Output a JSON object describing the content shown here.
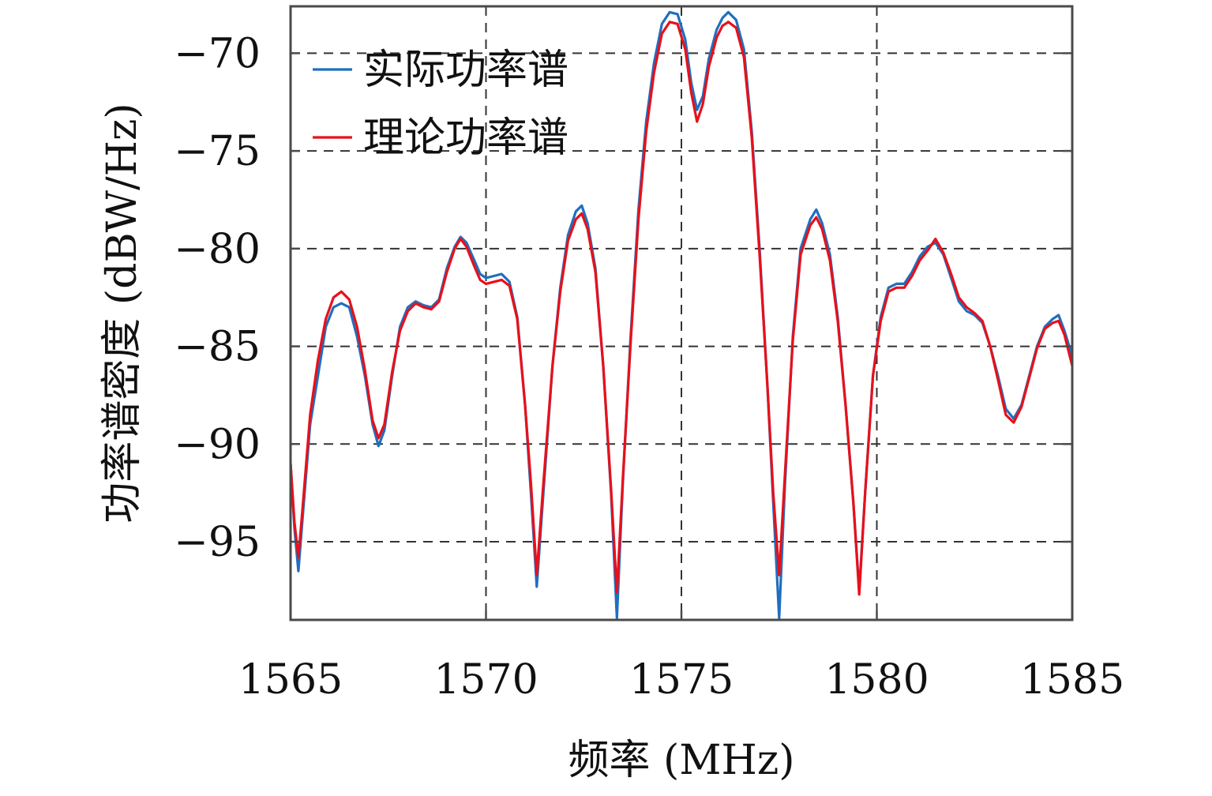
{
  "chart_data": {
    "type": "line",
    "title": "",
    "xlabel": "频率 (MHz)",
    "ylabel": "功率谱密度 (dBW/Hz)",
    "xlim": [
      1565,
      1585
    ],
    "ylim": [
      -99,
      -67.6
    ],
    "xticks": [
      1565,
      1570,
      1575,
      1580,
      1585
    ],
    "yticks": [
      -70,
      -75,
      -80,
      -85,
      -90,
      -95
    ],
    "xtick_labels": [
      "1565",
      "1570",
      "1575",
      "1580",
      "1585"
    ],
    "ytick_labels": [
      "−70",
      "−75",
      "−80",
      "−85",
      "−90",
      "−95"
    ],
    "grid": true,
    "legend_position": "top-left",
    "series": [
      {
        "name": "实际功率谱",
        "color": "#1f6fbf",
        "points": [
          [
            1565.0,
            -91.0
          ],
          [
            1565.1,
            -94.3
          ],
          [
            1565.2,
            -96.5
          ],
          [
            1565.3,
            -94.0
          ],
          [
            1565.5,
            -89.0
          ],
          [
            1565.7,
            -86.5
          ],
          [
            1565.9,
            -84.0
          ],
          [
            1566.1,
            -83.0
          ],
          [
            1566.3,
            -82.8
          ],
          [
            1566.5,
            -83.0
          ],
          [
            1566.7,
            -84.5
          ],
          [
            1566.9,
            -86.5
          ],
          [
            1567.1,
            -89.0
          ],
          [
            1567.25,
            -90.1
          ],
          [
            1567.4,
            -89.3
          ],
          [
            1567.6,
            -86.5
          ],
          [
            1567.8,
            -84.0
          ],
          [
            1568.0,
            -83.0
          ],
          [
            1568.2,
            -82.7
          ],
          [
            1568.4,
            -82.9
          ],
          [
            1568.6,
            -83.0
          ],
          [
            1568.8,
            -82.6
          ],
          [
            1569.0,
            -81.0
          ],
          [
            1569.2,
            -79.9
          ],
          [
            1569.35,
            -79.4
          ],
          [
            1569.5,
            -79.7
          ],
          [
            1569.7,
            -80.6
          ],
          [
            1569.85,
            -81.3
          ],
          [
            1570.0,
            -81.5
          ],
          [
            1570.2,
            -81.4
          ],
          [
            1570.4,
            -81.3
          ],
          [
            1570.6,
            -81.7
          ],
          [
            1570.8,
            -83.5
          ],
          [
            1571.0,
            -88.0
          ],
          [
            1571.15,
            -92.5
          ],
          [
            1571.3,
            -97.3
          ],
          [
            1571.45,
            -93.0
          ],
          [
            1571.7,
            -86.0
          ],
          [
            1571.9,
            -82.0
          ],
          [
            1572.1,
            -79.3
          ],
          [
            1572.3,
            -78.1
          ],
          [
            1572.45,
            -77.8
          ],
          [
            1572.6,
            -78.7
          ],
          [
            1572.8,
            -81.0
          ],
          [
            1573.0,
            -86.0
          ],
          [
            1573.2,
            -92.5
          ],
          [
            1573.35,
            -98.9
          ],
          [
            1573.5,
            -92.0
          ],
          [
            1573.7,
            -84.5
          ],
          [
            1573.9,
            -78.0
          ],
          [
            1574.1,
            -73.5
          ],
          [
            1574.3,
            -70.5
          ],
          [
            1574.5,
            -68.5
          ],
          [
            1574.7,
            -67.9
          ],
          [
            1574.9,
            -68.0
          ],
          [
            1575.1,
            -69.3
          ],
          [
            1575.25,
            -71.5
          ],
          [
            1575.4,
            -72.9
          ],
          [
            1575.55,
            -72.2
          ],
          [
            1575.7,
            -70.3
          ],
          [
            1575.9,
            -68.8
          ],
          [
            1576.05,
            -68.2
          ],
          [
            1576.2,
            -67.9
          ],
          [
            1576.4,
            -68.3
          ],
          [
            1576.6,
            -69.8
          ],
          [
            1576.8,
            -74.0
          ],
          [
            1577.0,
            -80.0
          ],
          [
            1577.2,
            -87.0
          ],
          [
            1577.35,
            -93.0
          ],
          [
            1577.5,
            -98.9
          ],
          [
            1577.65,
            -92.0
          ],
          [
            1577.85,
            -84.5
          ],
          [
            1578.05,
            -80.0
          ],
          [
            1578.3,
            -78.5
          ],
          [
            1578.45,
            -78.0
          ],
          [
            1578.6,
            -78.7
          ],
          [
            1578.8,
            -80.3
          ],
          [
            1579.0,
            -83.5
          ],
          [
            1579.2,
            -88.0
          ],
          [
            1579.4,
            -93.0
          ],
          [
            1579.55,
            -97.5
          ],
          [
            1579.7,
            -92.5
          ],
          [
            1579.9,
            -86.5
          ],
          [
            1580.1,
            -83.5
          ],
          [
            1580.3,
            -82.0
          ],
          [
            1580.5,
            -81.8
          ],
          [
            1580.7,
            -81.8
          ],
          [
            1580.9,
            -81.2
          ],
          [
            1581.1,
            -80.4
          ],
          [
            1581.3,
            -79.9
          ],
          [
            1581.5,
            -79.7
          ],
          [
            1581.7,
            -80.3
          ],
          [
            1581.9,
            -81.5
          ],
          [
            1582.1,
            -82.7
          ],
          [
            1582.3,
            -83.2
          ],
          [
            1582.5,
            -83.4
          ],
          [
            1582.7,
            -83.8
          ],
          [
            1582.9,
            -85.0
          ],
          [
            1583.1,
            -86.5
          ],
          [
            1583.3,
            -88.2
          ],
          [
            1583.5,
            -88.7
          ],
          [
            1583.7,
            -88.0
          ],
          [
            1583.9,
            -86.5
          ],
          [
            1584.1,
            -85.0
          ],
          [
            1584.3,
            -84.0
          ],
          [
            1584.5,
            -83.6
          ],
          [
            1584.65,
            -83.4
          ],
          [
            1584.8,
            -84.2
          ],
          [
            1585.0,
            -85.5
          ]
        ]
      },
      {
        "name": "理论功率谱",
        "color": "#e8101a",
        "points": [
          [
            1565.0,
            -91.0
          ],
          [
            1565.1,
            -94.0
          ],
          [
            1565.2,
            -95.8
          ],
          [
            1565.3,
            -93.5
          ],
          [
            1565.5,
            -88.5
          ],
          [
            1565.7,
            -85.7
          ],
          [
            1565.9,
            -83.6
          ],
          [
            1566.1,
            -82.5
          ],
          [
            1566.3,
            -82.2
          ],
          [
            1566.5,
            -82.6
          ],
          [
            1566.7,
            -84.0
          ],
          [
            1566.9,
            -86.2
          ],
          [
            1567.1,
            -88.8
          ],
          [
            1567.25,
            -89.7
          ],
          [
            1567.4,
            -89.0
          ],
          [
            1567.6,
            -86.3
          ],
          [
            1567.8,
            -84.2
          ],
          [
            1568.0,
            -83.2
          ],
          [
            1568.2,
            -82.8
          ],
          [
            1568.4,
            -83.0
          ],
          [
            1568.6,
            -83.1
          ],
          [
            1568.8,
            -82.7
          ],
          [
            1569.0,
            -81.2
          ],
          [
            1569.2,
            -80.0
          ],
          [
            1569.35,
            -79.5
          ],
          [
            1569.5,
            -79.9
          ],
          [
            1569.7,
            -80.9
          ],
          [
            1569.85,
            -81.6
          ],
          [
            1570.0,
            -81.8
          ],
          [
            1570.2,
            -81.7
          ],
          [
            1570.4,
            -81.6
          ],
          [
            1570.6,
            -81.9
          ],
          [
            1570.8,
            -83.6
          ],
          [
            1571.0,
            -88.0
          ],
          [
            1571.15,
            -92.0
          ],
          [
            1571.3,
            -96.7
          ],
          [
            1571.45,
            -92.5
          ],
          [
            1571.7,
            -86.0
          ],
          [
            1571.9,
            -82.2
          ],
          [
            1572.1,
            -79.6
          ],
          [
            1572.3,
            -78.5
          ],
          [
            1572.45,
            -78.2
          ],
          [
            1572.6,
            -79.0
          ],
          [
            1572.8,
            -81.2
          ],
          [
            1573.0,
            -86.0
          ],
          [
            1573.2,
            -92.3
          ],
          [
            1573.35,
            -97.6
          ],
          [
            1573.5,
            -91.8
          ],
          [
            1573.7,
            -84.8
          ],
          [
            1573.9,
            -78.5
          ],
          [
            1574.1,
            -74.0
          ],
          [
            1574.3,
            -71.0
          ],
          [
            1574.5,
            -69.0
          ],
          [
            1574.7,
            -68.4
          ],
          [
            1574.9,
            -68.5
          ],
          [
            1575.1,
            -69.8
          ],
          [
            1575.25,
            -72.0
          ],
          [
            1575.4,
            -73.5
          ],
          [
            1575.55,
            -72.6
          ],
          [
            1575.7,
            -70.7
          ],
          [
            1575.9,
            -69.2
          ],
          [
            1576.05,
            -68.6
          ],
          [
            1576.2,
            -68.4
          ],
          [
            1576.4,
            -68.7
          ],
          [
            1576.6,
            -70.2
          ],
          [
            1576.8,
            -74.3
          ],
          [
            1577.0,
            -80.3
          ],
          [
            1577.2,
            -87.0
          ],
          [
            1577.35,
            -92.5
          ],
          [
            1577.5,
            -96.7
          ],
          [
            1577.65,
            -91.5
          ],
          [
            1577.85,
            -84.7
          ],
          [
            1578.05,
            -80.3
          ],
          [
            1578.3,
            -78.8
          ],
          [
            1578.45,
            -78.4
          ],
          [
            1578.6,
            -79.0
          ],
          [
            1578.8,
            -80.6
          ],
          [
            1579.0,
            -83.7
          ],
          [
            1579.2,
            -88.0
          ],
          [
            1579.4,
            -93.0
          ],
          [
            1579.55,
            -97.7
          ],
          [
            1579.7,
            -92.5
          ],
          [
            1579.9,
            -86.5
          ],
          [
            1580.1,
            -83.7
          ],
          [
            1580.3,
            -82.2
          ],
          [
            1580.5,
            -82.0
          ],
          [
            1580.7,
            -82.0
          ],
          [
            1580.9,
            -81.4
          ],
          [
            1581.1,
            -80.6
          ],
          [
            1581.3,
            -80.1
          ],
          [
            1581.5,
            -79.5
          ],
          [
            1581.7,
            -80.2
          ],
          [
            1581.9,
            -81.3
          ],
          [
            1582.1,
            -82.5
          ],
          [
            1582.3,
            -83.0
          ],
          [
            1582.5,
            -83.3
          ],
          [
            1582.7,
            -83.7
          ],
          [
            1582.9,
            -85.0
          ],
          [
            1583.1,
            -86.7
          ],
          [
            1583.3,
            -88.5
          ],
          [
            1583.5,
            -88.9
          ],
          [
            1583.7,
            -88.1
          ],
          [
            1583.9,
            -86.6
          ],
          [
            1584.1,
            -85.1
          ],
          [
            1584.3,
            -84.1
          ],
          [
            1584.5,
            -83.8
          ],
          [
            1584.65,
            -83.7
          ],
          [
            1584.8,
            -84.4
          ],
          [
            1585.0,
            -86.0
          ]
        ]
      }
    ]
  }
}
